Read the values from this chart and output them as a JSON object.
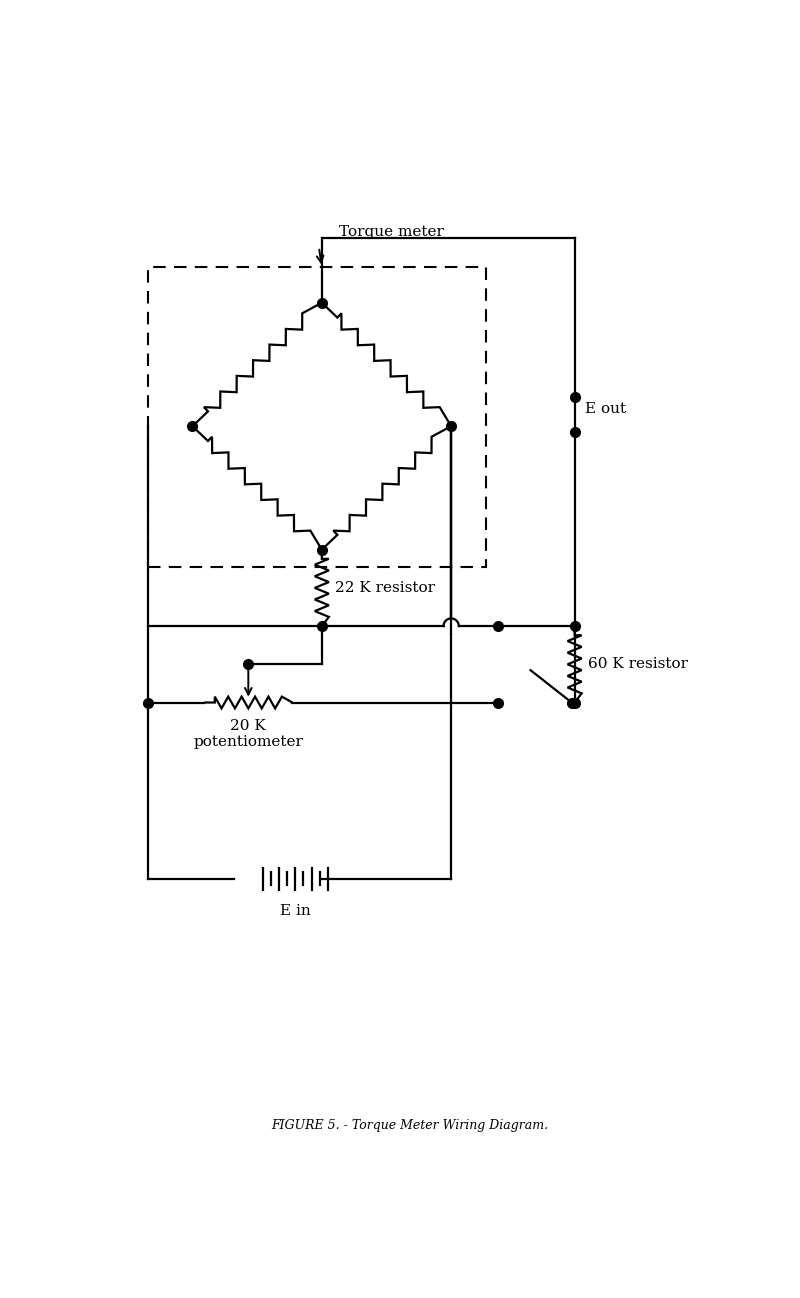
{
  "figure_width": 8.0,
  "figure_height": 12.98,
  "bg_color": "#ffffff",
  "line_color": "#000000",
  "line_width": 1.6,
  "dot_size": 7,
  "title": "FIGURE 5. - Torque Meter Wiring Diagram.",
  "title_fontsize": 9,
  "label_fontsize": 11,
  "torque_meter_label": "Torque meter",
  "resistor_22k_label": "22 K resistor",
  "resistor_60k_label": "60 K resistor",
  "potentiometer_label": "20 K\npotentiometer",
  "e_in_label": "E in",
  "e_out_label": "E out",
  "xlim": [
    0,
    10
  ],
  "ylim": [
    0,
    17
  ]
}
